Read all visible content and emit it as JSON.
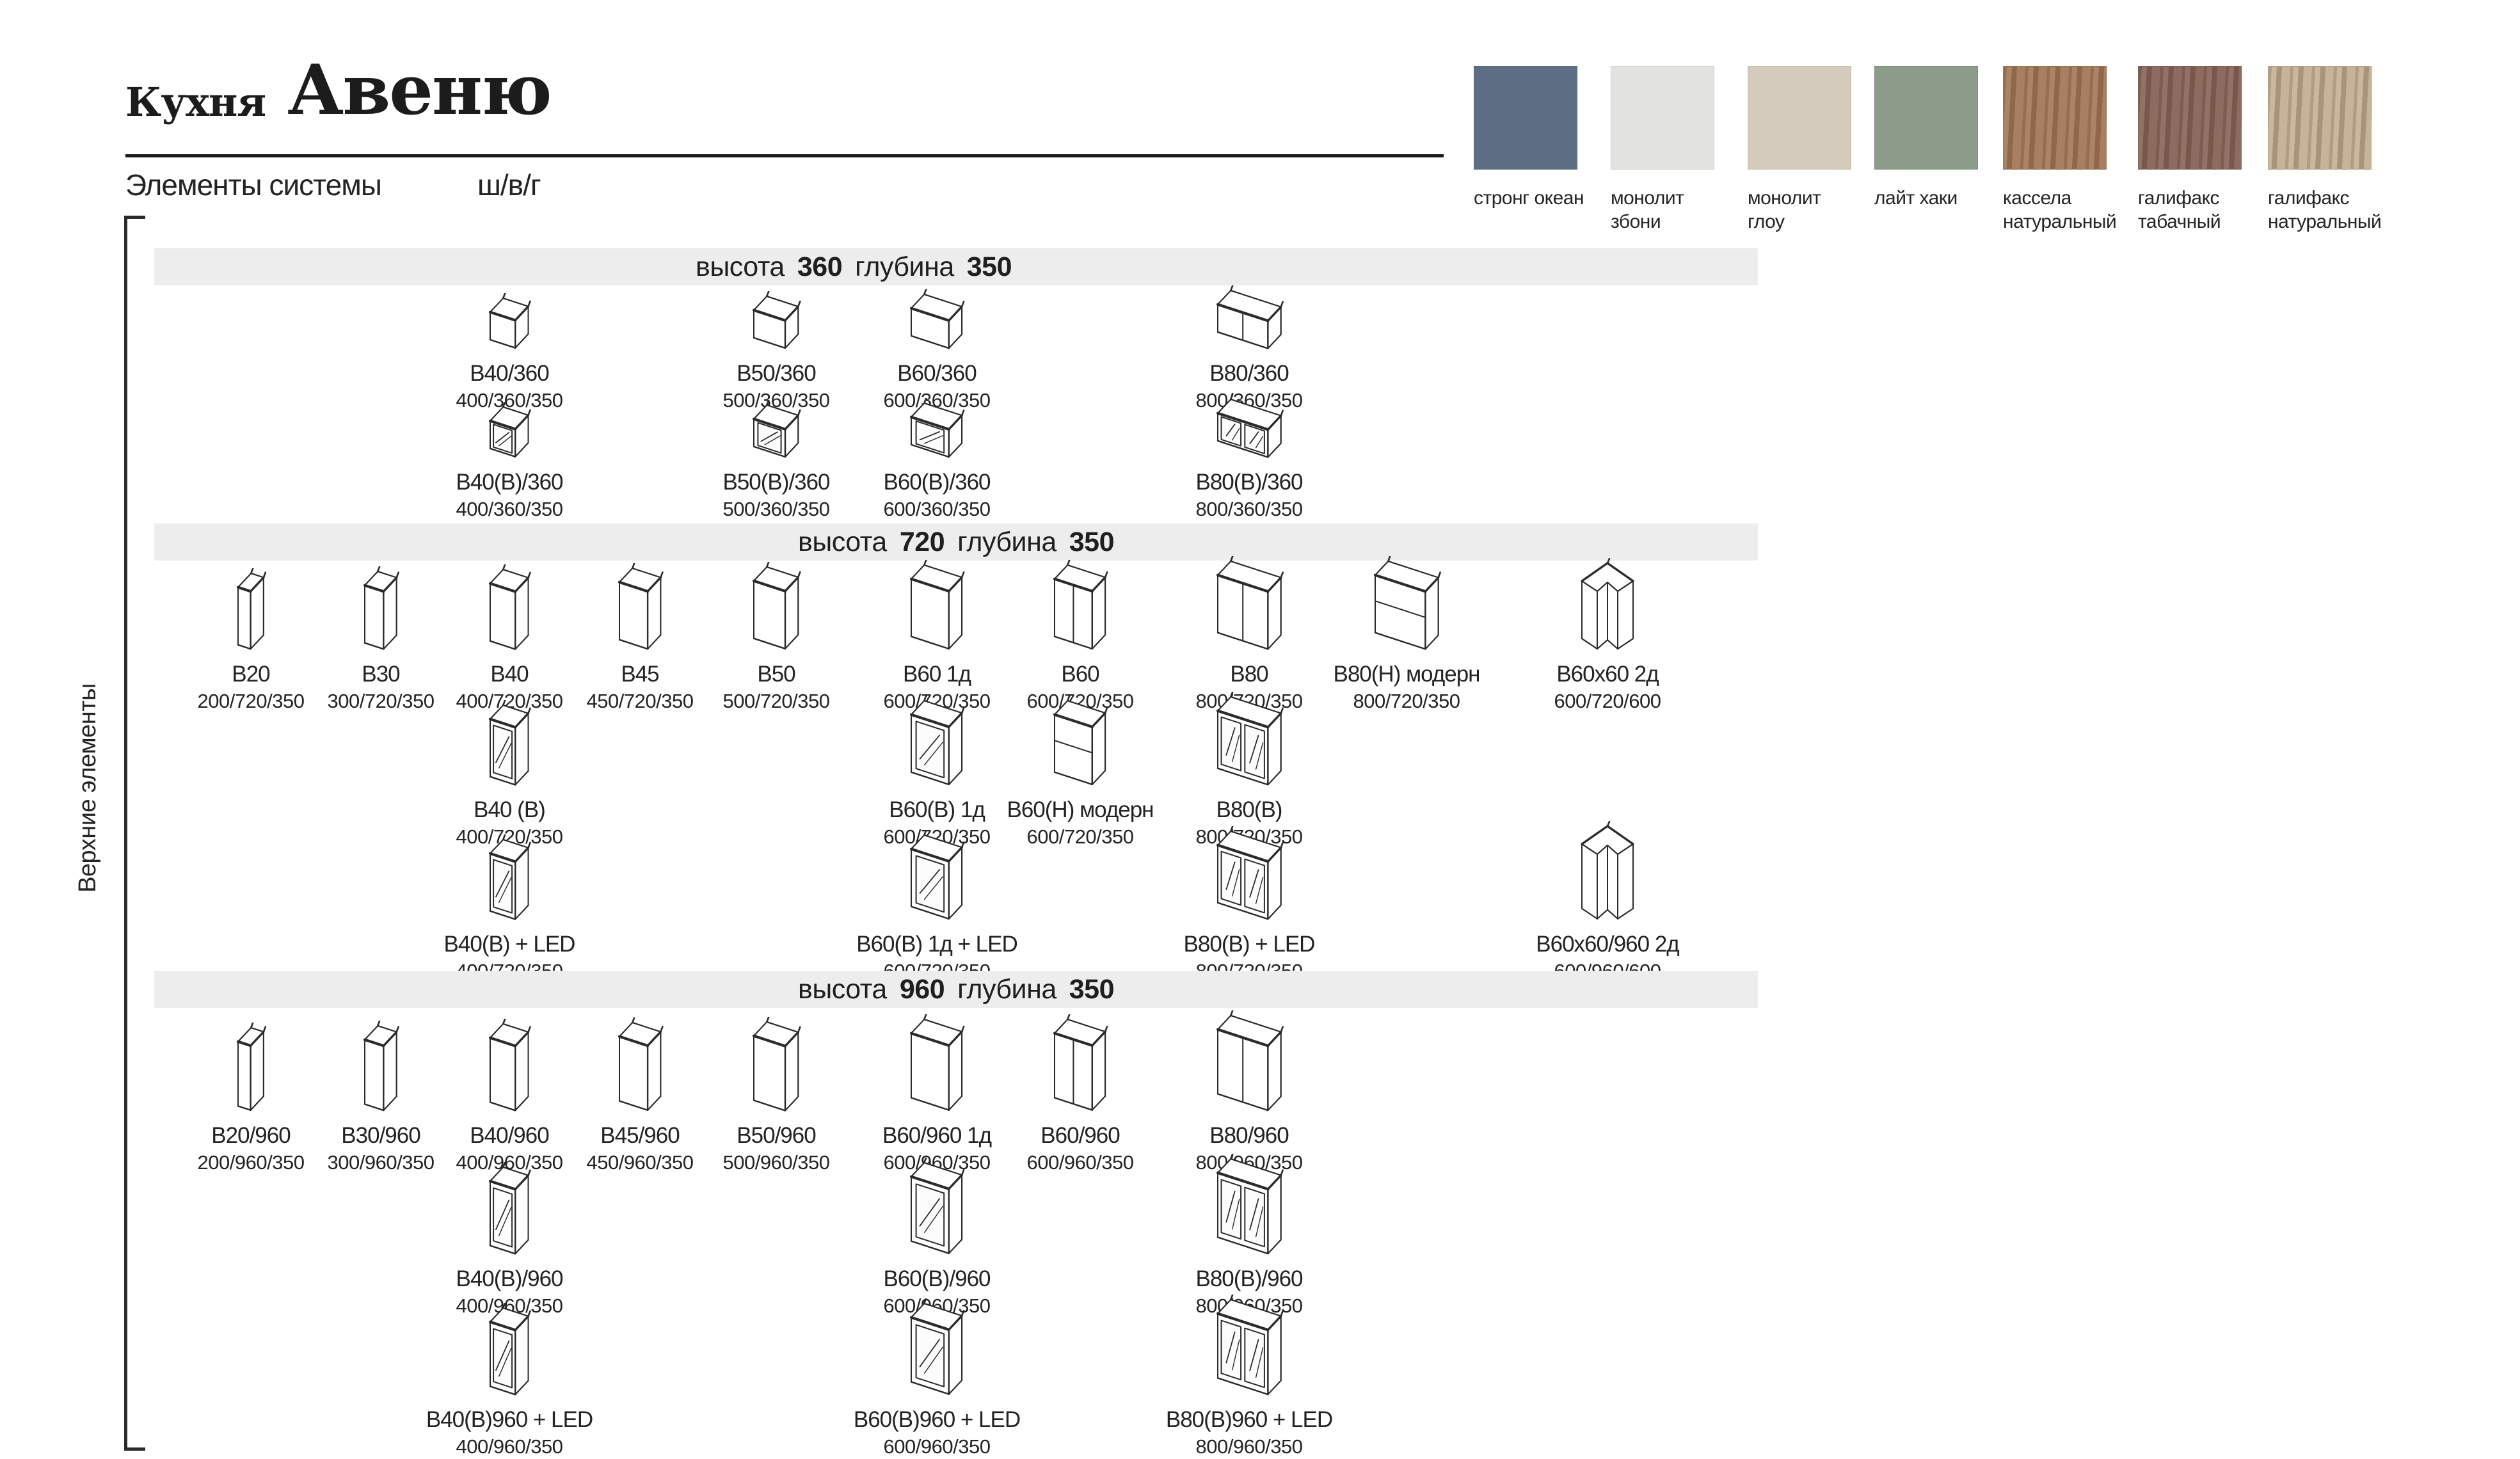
{
  "header": {
    "kitchen_label": "Кухня",
    "title": "Авеню",
    "subtitle": "Элементы системы",
    "dims_legend": "ш/в/г"
  },
  "side_label": "Верхние элементы",
  "finishes": [
    {
      "name": "стронг океан",
      "color": "#5e6f85",
      "texture": "solid"
    },
    {
      "name": "монолит збони",
      "color": "#e2e2e0",
      "texture": "solid"
    },
    {
      "name": "монолит глоу",
      "color": "#d5cbbd",
      "texture": "solid"
    },
    {
      "name": "лайт хаки",
      "color": "#8d9c8a",
      "texture": "solid"
    },
    {
      "name": "кассела натуральный",
      "color": "#a57b5b",
      "texture": "wood"
    },
    {
      "name": "галифакс табачный",
      "color": "#8a665c",
      "texture": "wood"
    },
    {
      "name": "галифакс натуральный",
      "color": "#c5b197",
      "texture": "wood"
    }
  ],
  "sections": [
    {
      "header": {
        "label_height": "высота",
        "height": "360",
        "label_depth": "глубина",
        "depth": "350"
      },
      "rows": [
        {
          "items": [
            {
              "name": "В40/360",
              "dims": "400/360/350",
              "col": 3,
              "variant": "plain",
              "icon": "wall-cabinet-iso-icon"
            },
            {
              "name": "В50/360",
              "dims": "500/360/350",
              "col": 5,
              "variant": "plain",
              "icon": "wall-cabinet-iso-icon"
            },
            {
              "name": "В60/360",
              "dims": "600/360/350",
              "col": 6,
              "variant": "plain",
              "icon": "wall-cabinet-iso-icon"
            },
            {
              "name": "В80/360",
              "dims": "800/360/350",
              "col": 8,
              "variant": "split",
              "icon": "wall-cabinet-two-door-iso-icon"
            }
          ]
        },
        {
          "items": [
            {
              "name": "В40(В)/360",
              "dims": "400/360/350",
              "col": 3,
              "variant": "glass",
              "icon": "wall-cabinet-glass-iso-icon"
            },
            {
              "name": "В50(В)/360",
              "dims": "500/360/350",
              "col": 5,
              "variant": "glass",
              "icon": "wall-cabinet-glass-iso-icon"
            },
            {
              "name": "В60(В)/360",
              "dims": "600/360/350",
              "col": 6,
              "variant": "glass",
              "icon": "wall-cabinet-glass-iso-icon"
            },
            {
              "name": "В80(В)/360",
              "dims": "800/360/350",
              "col": 8,
              "variant": "glass2",
              "icon": "wall-cabinet-two-glass-iso-icon"
            }
          ]
        }
      ]
    },
    {
      "header": {
        "label_height": "высота",
        "height": "720",
        "label_depth": "глубина",
        "depth": "350"
      },
      "rows": [
        {
          "items": [
            {
              "name": "В20",
              "dims": "200/720/350",
              "col": 1,
              "variant": "plain",
              "icon": "wall-cabinet-iso-icon"
            },
            {
              "name": "В30",
              "dims": "300/720/350",
              "col": 2,
              "variant": "plain",
              "icon": "wall-cabinet-iso-icon"
            },
            {
              "name": "В40",
              "dims": "400/720/350",
              "col": 3,
              "variant": "plain",
              "icon": "wall-cabinet-iso-icon"
            },
            {
              "name": "В45",
              "dims": "450/720/350",
              "col": 4,
              "variant": "plain",
              "icon": "wall-cabinet-iso-icon"
            },
            {
              "name": "В50",
              "dims": "500/720/350",
              "col": 5,
              "variant": "plain",
              "icon": "wall-cabinet-iso-icon"
            },
            {
              "name": "В60 1д",
              "dims": "600/720/350",
              "col": 6,
              "variant": "plain",
              "icon": "wall-cabinet-iso-icon"
            },
            {
              "name": "В60",
              "dims": "600/720/350",
              "col": 7,
              "variant": "split",
              "icon": "wall-cabinet-two-door-iso-icon"
            },
            {
              "name": "В80",
              "dims": "800/720/350",
              "col": 8,
              "variant": "split",
              "icon": "wall-cabinet-two-door-iso-icon"
            },
            {
              "name": "В80(Н) модерн",
              "dims": "800/720/350",
              "col": 9,
              "variant": "flap",
              "icon": "wall-cabinet-flap-iso-icon"
            },
            {
              "name": "В60х60 2д",
              "dims": "600/720/600",
              "col": 10,
              "variant": "corner",
              "icon": "corner-wall-cabinet-iso-icon"
            }
          ]
        },
        {
          "items": [
            {
              "name": "В40 (В)",
              "dims": "400/720/350",
              "col": 3,
              "variant": "glass",
              "icon": "wall-cabinet-glass-iso-icon"
            },
            {
              "name": "В60(В) 1д",
              "dims": "600/720/350",
              "col": 6,
              "variant": "glass",
              "icon": "wall-cabinet-glass-iso-icon"
            },
            {
              "name": "В60(Н) модерн",
              "dims": "600/720/350",
              "col": 7,
              "variant": "flap",
              "icon": "wall-cabinet-flap-iso-icon"
            },
            {
              "name": "В80(В)",
              "dims": "800/720/350",
              "col": 8,
              "variant": "glass2",
              "icon": "wall-cabinet-two-glass-iso-icon"
            }
          ]
        },
        {
          "items": [
            {
              "name": "В40(В) + LED",
              "dims": "400/720/350",
              "col": 3,
              "variant": "glass",
              "icon": "wall-cabinet-glass-led-iso-icon"
            },
            {
              "name": "В60(В) 1д + LED",
              "dims": "600/720/350",
              "col": 6,
              "variant": "glass",
              "icon": "wall-cabinet-glass-led-iso-icon"
            },
            {
              "name": "В80(В) + LED",
              "dims": "800/720/350",
              "col": 8,
              "variant": "glass2",
              "icon": "wall-cabinet-two-glass-led-iso-icon"
            },
            {
              "name": "В60х60/960 2д",
              "dims": "600/960/600",
              "col": 10,
              "variant": "corner",
              "icon": "corner-wall-cabinet-iso-icon"
            }
          ]
        }
      ]
    },
    {
      "header": {
        "label_height": "высота",
        "height": "960",
        "label_depth": "глубина",
        "depth": "350"
      },
      "rows": [
        {
          "items": [
            {
              "name": "В20/960",
              "dims": "200/960/350",
              "col": 1,
              "variant": "plain",
              "icon": "wall-cabinet-iso-icon"
            },
            {
              "name": "В30/960",
              "dims": "300/960/350",
              "col": 2,
              "variant": "plain",
              "icon": "wall-cabinet-iso-icon"
            },
            {
              "name": "В40/960",
              "dims": "400/960/350",
              "col": 3,
              "variant": "plain",
              "icon": "wall-cabinet-iso-icon"
            },
            {
              "name": "В45/960",
              "dims": "450/960/350",
              "col": 4,
              "variant": "plain",
              "icon": "wall-cabinet-iso-icon"
            },
            {
              "name": "В50/960",
              "dims": "500/960/350",
              "col": 5,
              "variant": "plain",
              "icon": "wall-cabinet-iso-icon"
            },
            {
              "name": "В60/960 1д",
              "dims": "600/960/350",
              "col": 6,
              "variant": "plain",
              "icon": "wall-cabinet-iso-icon"
            },
            {
              "name": "В60/960",
              "dims": "600/960/350",
              "col": 7,
              "variant": "split",
              "icon": "wall-cabinet-two-door-iso-icon"
            },
            {
              "name": "В80/960",
              "dims": "800/960/350",
              "col": 8,
              "variant": "split",
              "icon": "wall-cabinet-two-door-iso-icon"
            }
          ]
        },
        {
          "items": [
            {
              "name": "В40(В)/960",
              "dims": "400/960/350",
              "col": 3,
              "variant": "glass",
              "icon": "wall-cabinet-glass-iso-icon"
            },
            {
              "name": "В60(В)/960",
              "dims": "600/960/350",
              "col": 6,
              "variant": "glass",
              "icon": "wall-cabinet-glass-iso-icon"
            },
            {
              "name": "В80(В)/960",
              "dims": "800/960/350",
              "col": 8,
              "variant": "glass2",
              "icon": "wall-cabinet-two-glass-iso-icon"
            }
          ]
        },
        {
          "items": [
            {
              "name": "В40(В)960 + LED",
              "dims": "400/960/350",
              "col": 3,
              "variant": "glass",
              "icon": "wall-cabinet-glass-led-iso-icon"
            },
            {
              "name": "В60(В)960 + LED",
              "dims": "600/960/350",
              "col": 6,
              "variant": "glass",
              "icon": "wall-cabinet-glass-led-iso-icon"
            },
            {
              "name": "В80(В)960 + LED",
              "dims": "800/960/350",
              "col": 8,
              "variant": "glass2",
              "icon": "wall-cabinet-two-glass-led-iso-icon"
            }
          ]
        }
      ]
    }
  ]
}
